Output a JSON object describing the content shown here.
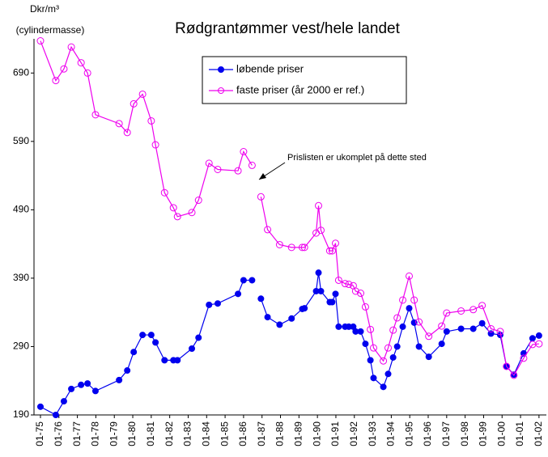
{
  "chart_data": {
    "type": "line",
    "title": "Rødgrantømmer vest/hele landet",
    "y_unit": "Dkr/m³",
    "y_unit_note": "(cylindermasse)",
    "annotation": "Prislisten er ukomplet på dette sted",
    "x": [
      1975.0,
      1975.83,
      1976.27,
      1976.67,
      1977.2,
      1977.55,
      1977.98,
      1979.26,
      1979.7,
      1980.05,
      1980.53,
      1981.0,
      1981.23,
      1981.72,
      1982.2,
      1982.42,
      1983.2,
      1983.56,
      1984.13,
      1984.6,
      1985.7,
      1986.0,
      1986.46,
      1986.7,
      1986.94,
      1987.3,
      1987.95,
      1988.6,
      1989.18,
      1989.3,
      1989.93,
      1990.06,
      1990.19,
      1990.67,
      1990.8,
      1990.98,
      1991.15,
      1991.5,
      1991.7,
      1991.94,
      1992.07,
      1992.34,
      1992.6,
      1992.87,
      1993.04,
      1993.57,
      1993.83,
      1994.1,
      1994.32,
      1994.62,
      1994.97,
      1995.24,
      1995.5,
      1996.03,
      1996.73,
      1997.0,
      1997.78,
      1998.44,
      1998.92,
      1999.4,
      1999.9,
      2000.24,
      2000.64,
      2001.17,
      2001.65,
      2002.0
    ],
    "series": [
      {
        "name": "løbende priser",
        "color": "#0000ee",
        "marker": "filled",
        "values": [
          202,
          190,
          210,
          228,
          234,
          236,
          225,
          241,
          255,
          282,
          307,
          307,
          296,
          270,
          270,
          270,
          287,
          303,
          351,
          353,
          367,
          387,
          387,
          null,
          360,
          333,
          322,
          331,
          345,
          346,
          371,
          398,
          371,
          355,
          355,
          367,
          319,
          319,
          319,
          319,
          312,
          312,
          294,
          270,
          244,
          231,
          250,
          274,
          290,
          319,
          346,
          325,
          290,
          275,
          294,
          312,
          316,
          316,
          324,
          309,
          307,
          261,
          249,
          280,
          302,
          306
        ]
      },
      {
        "name": "faste priser (år 2000 er ref.)",
        "color": "#ee00ee",
        "marker": "open",
        "values": [
          737,
          679,
          696,
          728,
          705,
          690,
          629,
          616,
          603,
          645,
          659,
          620,
          585,
          515,
          493,
          480,
          486,
          504,
          558,
          549,
          547,
          575,
          555,
          null,
          509,
          461,
          439,
          435,
          435,
          435,
          456,
          496,
          460,
          430,
          430,
          441,
          387,
          382,
          381,
          379,
          371,
          368,
          348,
          315,
          288,
          269,
          288,
          314,
          332,
          358,
          393,
          358,
          326,
          305,
          320,
          339,
          342,
          344,
          350,
          316,
          312,
          261,
          248,
          273,
          293,
          294
        ]
      }
    ],
    "xlim": [
      1974.65,
      2002.4
    ],
    "xticks": [
      {
        "value": 1975,
        "label": "01-75"
      },
      {
        "value": 1976,
        "label": "01-76"
      },
      {
        "value": 1977,
        "label": "01-77"
      },
      {
        "value": 1978,
        "label": "01-78"
      },
      {
        "value": 1979,
        "label": "01-79"
      },
      {
        "value": 1980,
        "label": "01-80"
      },
      {
        "value": 1981,
        "label": "01-81"
      },
      {
        "value": 1982,
        "label": "01-82"
      },
      {
        "value": 1983,
        "label": "01-83"
      },
      {
        "value": 1984,
        "label": "01-84"
      },
      {
        "value": 1985,
        "label": "01-85"
      },
      {
        "value": 1986,
        "label": "01-86"
      },
      {
        "value": 1987,
        "label": "01-87"
      },
      {
        "value": 1988,
        "label": "01-88"
      },
      {
        "value": 1989,
        "label": "01-89"
      },
      {
        "value": 1990,
        "label": "01-90"
      },
      {
        "value": 1991,
        "label": "01-91"
      },
      {
        "value": 1992,
        "label": "01-92"
      },
      {
        "value": 1993,
        "label": "01-93"
      },
      {
        "value": 1994,
        "label": "01-94"
      },
      {
        "value": 1995,
        "label": "01-95"
      },
      {
        "value": 1996,
        "label": "01-96"
      },
      {
        "value": 1997,
        "label": "01-97"
      },
      {
        "value": 1998,
        "label": "01-98"
      },
      {
        "value": 1999,
        "label": "01-99"
      },
      {
        "value": 2000,
        "label": "01-00"
      },
      {
        "value": 2001,
        "label": "01-01"
      },
      {
        "value": 2002,
        "label": "01-02"
      }
    ],
    "ylim": [
      190,
      740
    ],
    "yticks": [
      190,
      290,
      390,
      490,
      590,
      690
    ],
    "grid": false,
    "legend": "top"
  }
}
